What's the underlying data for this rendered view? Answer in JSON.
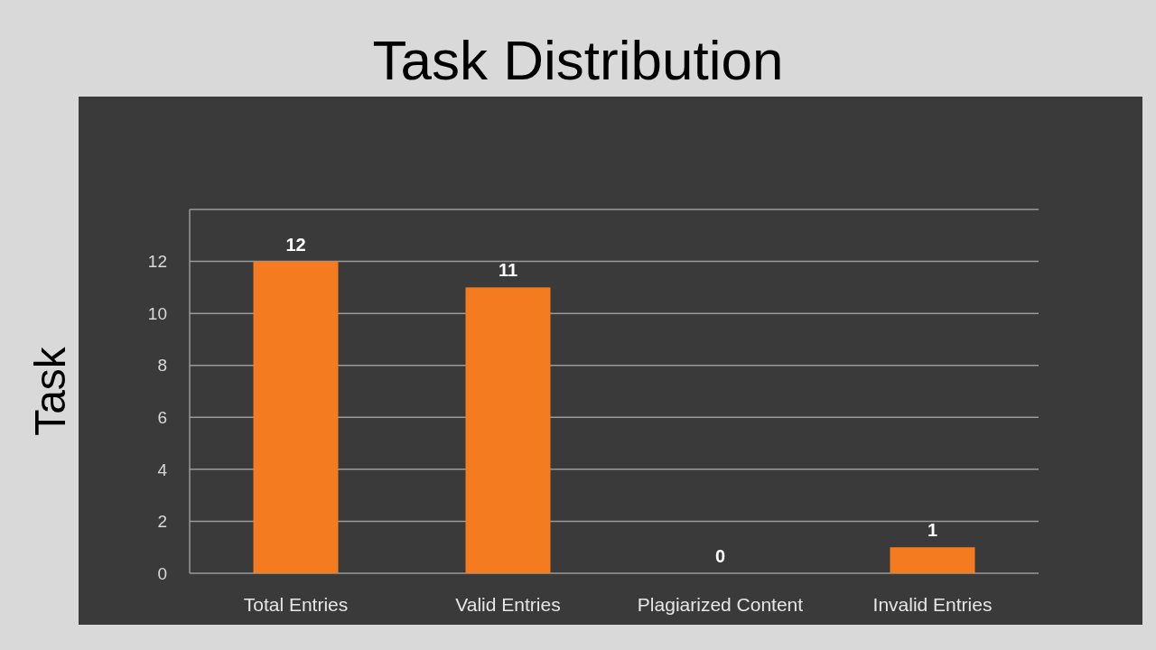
{
  "chart_data": {
    "type": "bar",
    "title": "Task Distribution",
    "ylabel": "Task",
    "categories": [
      "Total Entries",
      "Valid Entries",
      "Plagiarized Content",
      "Invalid Entries"
    ],
    "values": [
      12,
      11,
      0,
      1
    ],
    "color": "#f47b20",
    "ylim": [
      0,
      14
    ],
    "yticks": [
      0,
      2,
      4,
      6,
      8,
      10,
      12,
      {
        "value": 14,
        "label": null
      }
    ],
    "grid": "y",
    "data_labels": true
  }
}
